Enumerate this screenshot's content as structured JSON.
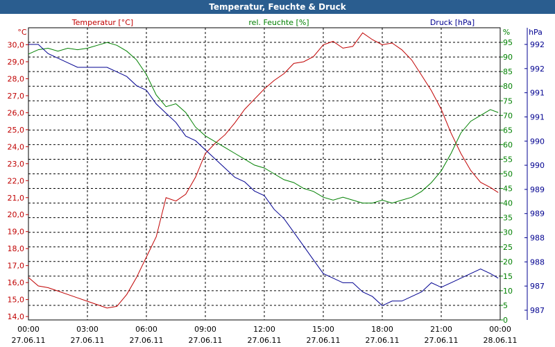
{
  "window": {
    "title": "Temperatur, Feuchte & Druck"
  },
  "chart_data": {
    "type": "line",
    "title": "Temperatur, Feuchte & Druck",
    "grid": true,
    "colors": {
      "temperature": "#c00000",
      "humidity": "#008000",
      "pressure": "#000090",
      "grid": "#000000"
    },
    "x_ticks": [
      {
        "time": "00:00",
        "date": "27.06.11"
      },
      {
        "time": "03:00",
        "date": "27.06.11"
      },
      {
        "time": "06:00",
        "date": "27.06.11"
      },
      {
        "time": "09:00",
        "date": "27.06.11"
      },
      {
        "time": "12:00",
        "date": "27.06.11"
      },
      {
        "time": "15:00",
        "date": "27.06.11"
      },
      {
        "time": "18:00",
        "date": "27.06.11"
      },
      {
        "time": "21:00",
        "date": "27.06.11"
      },
      {
        "time": "00:00",
        "date": "28.06.11"
      }
    ],
    "axes": {
      "temperature": {
        "label": "Temperatur [°C]",
        "unit": "°C",
        "range": [
          13.8,
          31.0
        ],
        "ticks": [
          "14,0",
          "15,0",
          "16,0",
          "17,0",
          "18,0",
          "19,0",
          "20,0",
          "21,0",
          "22,0",
          "23,0",
          "24,0",
          "25,0",
          "26,0",
          "27,0",
          "28,0",
          "29,0",
          "30,0"
        ]
      },
      "humidity": {
        "label": "rel. Feuchte [%]",
        "unit": "%",
        "range": [
          0,
          100
        ],
        "ticks": [
          "0",
          "5",
          "10",
          "15",
          "20",
          "25",
          "30",
          "35",
          "40",
          "45",
          "50",
          "55",
          "60",
          "65",
          "70",
          "75",
          "80",
          "85",
          "90",
          "95"
        ]
      },
      "pressure": {
        "label": "Druck [hPa]",
        "unit": "hPa",
        "ticks": [
          "987",
          "987",
          "988",
          "988",
          "989",
          "989",
          "990",
          "990",
          "991",
          "991",
          "992",
          "992"
        ]
      }
    },
    "series": [
      {
        "name": "Temperatur [°C]",
        "axis": "temperature",
        "x": [
          0,
          0.5,
          1,
          1.5,
          2,
          2.5,
          3,
          3.5,
          4,
          4.5,
          5,
          5.5,
          6,
          6.5,
          7,
          7.5,
          8,
          8.5,
          9,
          9.5,
          10,
          10.5,
          11,
          11.5,
          12,
          12.5,
          13,
          13.5,
          14,
          14.5,
          15,
          15.5,
          16,
          16.5,
          17,
          17.5,
          18,
          18.5,
          19,
          19.5,
          20,
          20.5,
          21,
          21.5,
          22,
          22.5,
          23,
          23.5,
          23.9
        ],
        "y": [
          16.3,
          15.8,
          15.7,
          15.5,
          15.3,
          15.1,
          14.9,
          14.7,
          14.5,
          14.6,
          15.3,
          16.3,
          17.5,
          18.7,
          21.0,
          20.8,
          21.2,
          22.2,
          23.6,
          24.2,
          24.7,
          25.4,
          26.2,
          26.8,
          27.4,
          27.9,
          28.3,
          28.9,
          29.0,
          29.3,
          30.0,
          30.2,
          29.8,
          29.9,
          30.7,
          30.3,
          30.0,
          30.1,
          29.7,
          29.1,
          28.2,
          27.3,
          26.2,
          24.8,
          23.6,
          22.6,
          21.9,
          21.6,
          21.3
        ]
      },
      {
        "name": "rel. Feuchte [%]",
        "axis": "humidity",
        "x": [
          0,
          0.5,
          1,
          1.5,
          2,
          2.5,
          3,
          3.5,
          4,
          4.5,
          5,
          5.5,
          6,
          6.5,
          7,
          7.5,
          8,
          8.5,
          9,
          9.5,
          10,
          10.5,
          11,
          11.5,
          12,
          12.5,
          13,
          13.5,
          14,
          14.5,
          15,
          15.5,
          16,
          16.5,
          17,
          17.5,
          18,
          18.5,
          19,
          19.5,
          20,
          20.5,
          21,
          21.5,
          22,
          22.5,
          23,
          23.5,
          23.9
        ],
        "y": [
          91,
          92.5,
          93,
          92,
          93,
          92.5,
          93,
          94,
          95,
          94,
          92,
          89,
          84,
          77,
          73,
          74,
          71,
          66,
          63,
          61,
          59,
          57,
          55,
          53,
          52,
          50,
          48,
          47,
          45,
          44,
          42,
          41,
          42,
          41,
          40,
          40,
          41,
          40,
          41,
          42,
          44,
          47,
          51,
          57,
          64,
          68,
          70,
          72,
          71
        ]
      },
      {
        "name": "Druck [hPa]",
        "axis": "pressure",
        "x": [
          0,
          0.5,
          1,
          1.5,
          2,
          2.5,
          3,
          3.5,
          4,
          4.5,
          5,
          5.5,
          6,
          6.5,
          7,
          7.5,
          8,
          8.5,
          9,
          9.5,
          10,
          10.5,
          11,
          11.5,
          12,
          12.5,
          13,
          13.5,
          14,
          14.5,
          15,
          15.5,
          16,
          16.5,
          17,
          17.5,
          18,
          18.5,
          19,
          19.5,
          20,
          20.5,
          21,
          21.5,
          22,
          22.5,
          23,
          23.5,
          23.9
        ],
        "y": [
          992.2,
          992.2,
          992.0,
          991.9,
          991.8,
          991.7,
          991.7,
          991.7,
          991.7,
          991.6,
          991.5,
          991.3,
          991.2,
          990.9,
          990.7,
          990.5,
          990.2,
          990.1,
          989.9,
          989.7,
          989.5,
          989.3,
          989.2,
          989.0,
          988.9,
          988.6,
          988.4,
          988.1,
          987.8,
          987.5,
          987.2,
          987.1,
          987.0,
          987.0,
          986.8,
          986.7,
          986.5,
          986.6,
          986.6,
          986.7,
          986.8,
          987.0,
          986.9,
          987.0,
          987.1,
          987.2,
          987.3,
          987.2,
          987.1
        ]
      }
    ]
  }
}
